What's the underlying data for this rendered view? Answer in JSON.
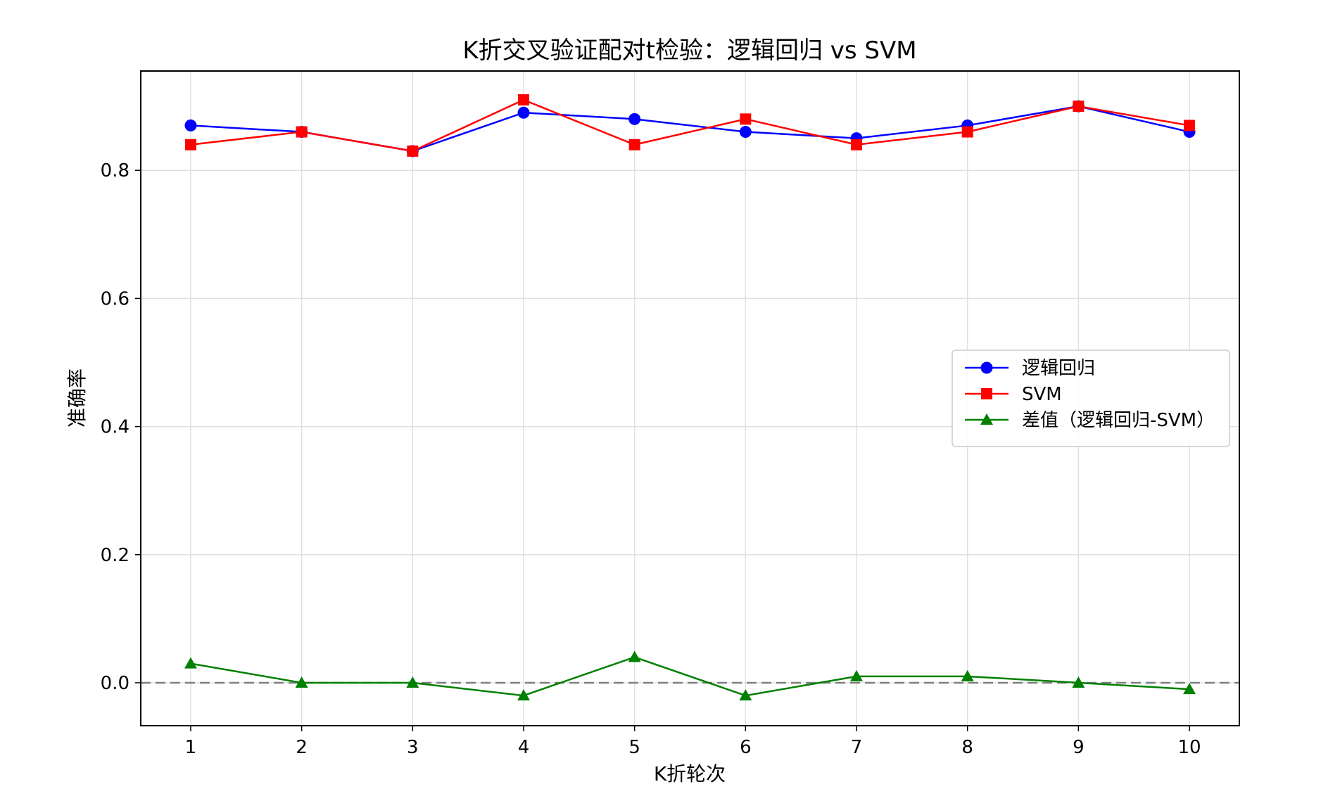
{
  "chart_data": {
    "type": "line",
    "title": "K折交叉验证配对t检验：逻辑回归 vs SVM",
    "xlabel": "K折轮次",
    "ylabel": "准确率",
    "x": [
      1,
      2,
      3,
      4,
      5,
      6,
      7,
      8,
      9,
      10
    ],
    "x_tick_labels": [
      "1",
      "2",
      "3",
      "4",
      "5",
      "6",
      "7",
      "8",
      "9",
      "10"
    ],
    "y_ticks": [
      0.0,
      0.2,
      0.4,
      0.6,
      0.8
    ],
    "y_tick_labels": [
      "0.0",
      "0.2",
      "0.4",
      "0.6",
      "0.8"
    ],
    "xlim": [
      0.55,
      10.45
    ],
    "ylim": [
      -0.067,
      0.955
    ],
    "grid": true,
    "legend_position": "center-right",
    "reference_line": {
      "y": 0.0,
      "style": "dashed",
      "color": "#7f7f7f"
    },
    "series": [
      {
        "name": "逻辑回归",
        "color": "#0000ff",
        "marker": "circle",
        "values": [
          0.87,
          0.86,
          0.83,
          0.89,
          0.88,
          0.86,
          0.85,
          0.87,
          0.9,
          0.86
        ]
      },
      {
        "name": "SVM",
        "color": "#ff0000",
        "marker": "square",
        "values": [
          0.84,
          0.86,
          0.83,
          0.91,
          0.84,
          0.88,
          0.84,
          0.86,
          0.9,
          0.87
        ]
      },
      {
        "name": "差值（逻辑回归-SVM）",
        "color": "#008000",
        "marker": "triangle",
        "values": [
          0.03,
          0.0,
          0.0,
          -0.02,
          0.04,
          -0.02,
          0.01,
          0.01,
          0.0,
          -0.01
        ]
      }
    ]
  }
}
